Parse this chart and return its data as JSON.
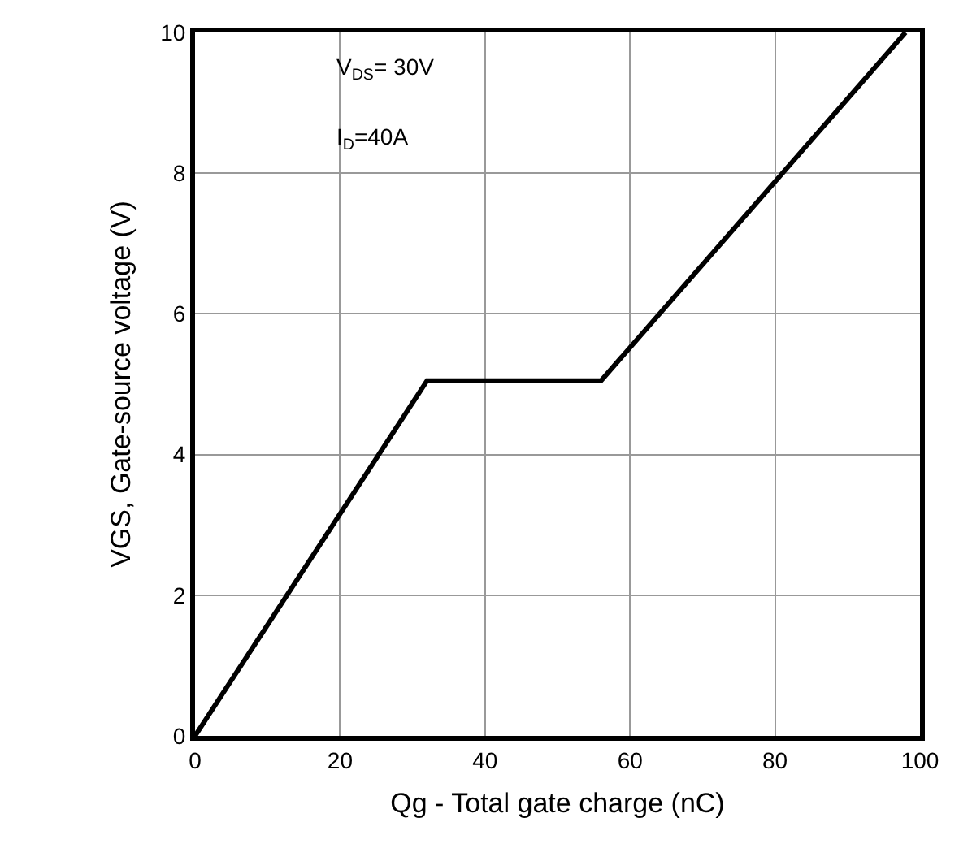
{
  "chart_data": {
    "type": "line",
    "xlabel": "Qg - Total gate charge (nC)",
    "ylabel": "VGS, Gate-source voltage (V)",
    "x": [
      0,
      32,
      56,
      98
    ],
    "series": [
      {
        "color": "#000000",
        "values": [
          0,
          5.05,
          5.05,
          10
        ]
      }
    ],
    "xlim": [
      0,
      100
    ],
    "xticks": [
      0,
      20,
      40,
      60,
      80,
      100
    ],
    "ylim": [
      0,
      10
    ],
    "yticks": [
      0,
      2,
      4,
      6,
      8,
      10
    ],
    "grid": true,
    "marker": "none",
    "line_style": "solid",
    "annotations": [
      "V$_{DS}$= 30V",
      "I$_{D}$=40A"
    ]
  }
}
